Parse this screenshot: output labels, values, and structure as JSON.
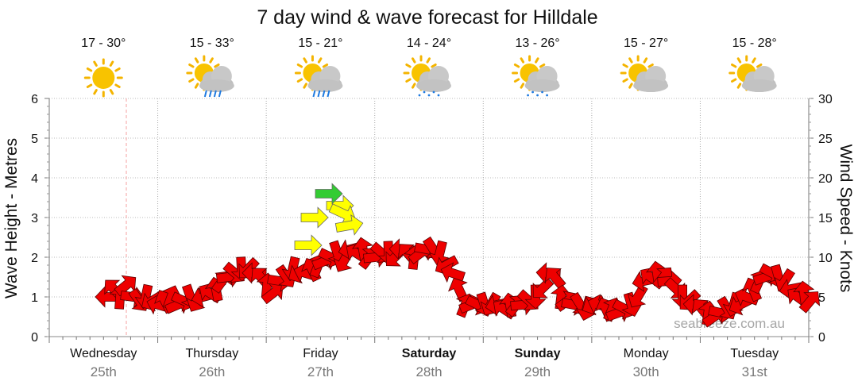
{
  "chart_data": {
    "type": "line",
    "title": "7 day wind & wave forecast for Hilldale",
    "ylabel_left": "Wave Height - Metres",
    "ylabel_right": "Wind Speed - Knots",
    "y_left_range": [
      0,
      6
    ],
    "y_left_ticks": [
      "0",
      "1",
      "2",
      "3",
      "4",
      "5",
      "6"
    ],
    "y_right_range": [
      0,
      30
    ],
    "y_right_ticks": [
      "0",
      "5",
      "10",
      "15",
      "20",
      "25",
      "30"
    ],
    "watermark": "seabreeze.com.au",
    "grid": true,
    "days": [
      {
        "name": "Wednesday",
        "date": "25th",
        "temp": "17 - 30°",
        "icon": "sun-icon",
        "bold": false
      },
      {
        "name": "Thursday",
        "date": "26th",
        "temp": "15 - 33°",
        "icon": "sun-cloud-rain-icon",
        "bold": false
      },
      {
        "name": "Friday",
        "date": "27th",
        "temp": "15 - 21°",
        "icon": "sun-cloud-rain-icon",
        "bold": false
      },
      {
        "name": "Saturday",
        "date": "28th",
        "temp": "14 - 24°",
        "icon": "sun-cloud-showers-icon",
        "bold": true
      },
      {
        "name": "Sunday",
        "date": "29th",
        "temp": "13 - 26°",
        "icon": "sun-cloud-showers-icon",
        "bold": true
      },
      {
        "name": "Monday",
        "date": "30th",
        "temp": "15 - 27°",
        "icon": "sun-cloud-icon",
        "bold": false
      },
      {
        "name": "Tuesday",
        "date": "31st",
        "temp": "15 - 28°",
        "icon": "sun-cloud-icon",
        "bold": false
      }
    ],
    "wind_knots": [
      5,
      6,
      5,
      6.5,
      5,
      4.5,
      5,
      4.5,
      4,
      4.5,
      5,
      4,
      4.5,
      5,
      4.5,
      5,
      5.5,
      6,
      7,
      7.5,
      8,
      8.5,
      8.5,
      8,
      7.5,
      6.5,
      5.5,
      7,
      7.5,
      8.5,
      8,
      8,
      8.5,
      9,
      9.5,
      10,
      10.5,
      9.5,
      11,
      10.5,
      11,
      10,
      10,
      10.5,
      10.5,
      10,
      11,
      10.5,
      10,
      10.5,
      11,
      11,
      10.5,
      9,
      8,
      6,
      4,
      4,
      4,
      4,
      4,
      4,
      3.5,
      4,
      4,
      4,
      4.5,
      5,
      6,
      8,
      7.5,
      5,
      4.5,
      4,
      4,
      3.5,
      4,
      4,
      3.5,
      3.5,
      3,
      3.5,
      4,
      5,
      7,
      7.5,
      8,
      7.5,
      7,
      6,
      5,
      4.5,
      4,
      3.5,
      3,
      2.5,
      3,
      3.5,
      4,
      4,
      5,
      6,
      7,
      7.5,
      8,
      7.5,
      7,
      6,
      5,
      5.5,
      4.5
    ],
    "wave_arrows": [
      {
        "knots": 11.5,
        "color": "#ffff00"
      },
      {
        "knots": 15,
        "color": "#ffff00"
      },
      {
        "knots": 16.5,
        "color": "#ffff00"
      },
      {
        "knots": 18,
        "color": "#33cc33"
      },
      {
        "knots": 15.5,
        "color": "#ffff00"
      },
      {
        "knots": 14,
        "color": "#ffff00"
      }
    ],
    "legend_colors": {
      "calm": "#ffff00",
      "moderate": "#33cc33",
      "strong": "#ee0000"
    }
  }
}
